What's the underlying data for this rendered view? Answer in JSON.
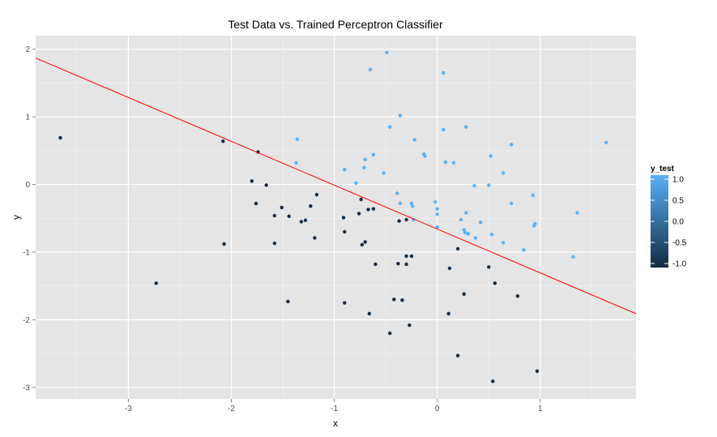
{
  "chart_data": {
    "type": "scatter",
    "title": "Test Data vs. Trained Perceptron Classifier",
    "xlabel": "x",
    "ylabel": "y",
    "xlim": [
      -3.9,
      1.93
    ],
    "ylim": [
      -3.17,
      2.2
    ],
    "x_ticks": [
      -3,
      -2,
      -1,
      0,
      1
    ],
    "y_ticks": [
      -3,
      -2,
      -1,
      0,
      1,
      2
    ],
    "grid": true,
    "colors": {
      "panel_bg": "#e5e5e5",
      "grid_major": "#ffffff",
      "grid_minor": "#f2f2f2",
      "low": "#132b43",
      "high": "#56b1f7",
      "line": "#ff0000"
    },
    "legend": {
      "title": "y_test",
      "placement": "right",
      "range": [
        -1.0,
        1.0
      ],
      "ticks": [
        "1.0",
        "0.5",
        "0.0",
        "-0.5",
        "-1.0"
      ]
    },
    "decision_line": {
      "points": [
        [
          -3.9,
          1.87
        ],
        [
          1.93,
          -1.91
        ]
      ]
    },
    "points": [
      {
        "x": -0.49,
        "y": 1.95,
        "c": 1
      },
      {
        "x": -0.65,
        "y": 1.7,
        "c": 1
      },
      {
        "x": 0.06,
        "y": 1.65,
        "c": 1
      },
      {
        "x": -0.36,
        "y": 1.02,
        "c": 1
      },
      {
        "x": -0.46,
        "y": 0.85,
        "c": 1
      },
      {
        "x": 0.28,
        "y": 0.85,
        "c": 1
      },
      {
        "x": 0.06,
        "y": 0.81,
        "c": 1
      },
      {
        "x": -0.22,
        "y": 0.66,
        "c": 1
      },
      {
        "x": -1.36,
        "y": 0.67,
        "c": 1
      },
      {
        "x": 1.64,
        "y": 0.62,
        "c": 1
      },
      {
        "x": 0.72,
        "y": 0.59,
        "c": 1
      },
      {
        "x": -0.62,
        "y": 0.44,
        "c": 1
      },
      {
        "x": -0.13,
        "y": 0.45,
        "c": 1
      },
      {
        "x": -0.12,
        "y": 0.42,
        "c": 1
      },
      {
        "x": 0.52,
        "y": 0.42,
        "c": 1
      },
      {
        "x": -0.7,
        "y": 0.37,
        "c": 1
      },
      {
        "x": 0.08,
        "y": 0.33,
        "c": 1
      },
      {
        "x": 0.16,
        "y": 0.32,
        "c": 1
      },
      {
        "x": -1.37,
        "y": 0.32,
        "c": 1
      },
      {
        "x": -0.71,
        "y": 0.25,
        "c": 1
      },
      {
        "x": -0.9,
        "y": 0.22,
        "c": 1
      },
      {
        "x": -0.52,
        "y": 0.17,
        "c": 1
      },
      {
        "x": 0.64,
        "y": 0.17,
        "c": 1
      },
      {
        "x": -0.79,
        "y": 0.02,
        "c": 1
      },
      {
        "x": 0.5,
        "y": -0.01,
        "c": 1
      },
      {
        "x": 0.36,
        "y": -0.02,
        "c": 1
      },
      {
        "x": -0.39,
        "y": -0.13,
        "c": 1
      },
      {
        "x": 0.93,
        "y": -0.16,
        "c": 1
      },
      {
        "x": -0.02,
        "y": -0.26,
        "c": 1
      },
      {
        "x": -0.36,
        "y": -0.28,
        "c": 1
      },
      {
        "x": -0.25,
        "y": -0.28,
        "c": 1
      },
      {
        "x": 0.72,
        "y": -0.28,
        "c": 1
      },
      {
        "x": -0.24,
        "y": -0.32,
        "c": 1
      },
      {
        "x": 0.0,
        "y": -0.36,
        "c": 1
      },
      {
        "x": 0.0,
        "y": -0.44,
        "c": 1
      },
      {
        "x": 1.36,
        "y": -0.42,
        "c": 1
      },
      {
        "x": 0.28,
        "y": -0.42,
        "c": 1
      },
      {
        "x": -0.23,
        "y": -0.52,
        "c": 1
      },
      {
        "x": 0.23,
        "y": -0.52,
        "c": 1
      },
      {
        "x": 0.42,
        "y": -0.56,
        "c": 1
      },
      {
        "x": 0.95,
        "y": -0.58,
        "c": 1
      },
      {
        "x": 0.94,
        "y": -0.61,
        "c": 1
      },
      {
        "x": 0.0,
        "y": -0.63,
        "c": 1
      },
      {
        "x": 0.26,
        "y": -0.67,
        "c": 1
      },
      {
        "x": 0.27,
        "y": -0.71,
        "c": 1
      },
      {
        "x": 0.3,
        "y": -0.73,
        "c": 1
      },
      {
        "x": 0.53,
        "y": -0.74,
        "c": 1
      },
      {
        "x": 0.37,
        "y": -0.79,
        "c": 1
      },
      {
        "x": 0.64,
        "y": -0.86,
        "c": 1
      },
      {
        "x": 0.84,
        "y": -0.97,
        "c": 1
      },
      {
        "x": 1.32,
        "y": -1.07,
        "c": 1
      },
      {
        "x": -3.66,
        "y": 0.69,
        "c": -1
      },
      {
        "x": -2.08,
        "y": 0.64,
        "c": -1
      },
      {
        "x": -1.74,
        "y": 0.48,
        "c": -1
      },
      {
        "x": -1.8,
        "y": 0.05,
        "c": -1
      },
      {
        "x": -1.66,
        "y": -0.01,
        "c": -1
      },
      {
        "x": -1.17,
        "y": -0.15,
        "c": -1
      },
      {
        "x": -0.74,
        "y": -0.22,
        "c": -1
      },
      {
        "x": -1.76,
        "y": -0.28,
        "c": -1
      },
      {
        "x": -1.51,
        "y": -0.34,
        "c": -1
      },
      {
        "x": -1.23,
        "y": -0.32,
        "c": -1
      },
      {
        "x": -0.67,
        "y": -0.37,
        "c": -1
      },
      {
        "x": -0.62,
        "y": -0.36,
        "c": -1
      },
      {
        "x": -0.76,
        "y": -0.43,
        "c": -1
      },
      {
        "x": -1.58,
        "y": -0.46,
        "c": -1
      },
      {
        "x": -1.44,
        "y": -0.47,
        "c": -1
      },
      {
        "x": -0.91,
        "y": -0.49,
        "c": -1
      },
      {
        "x": -1.32,
        "y": -0.55,
        "c": -1
      },
      {
        "x": -1.28,
        "y": -0.53,
        "c": -1
      },
      {
        "x": -0.37,
        "y": -0.54,
        "c": -1
      },
      {
        "x": -0.3,
        "y": -0.52,
        "c": -1
      },
      {
        "x": -0.9,
        "y": -0.7,
        "c": -1
      },
      {
        "x": -1.19,
        "y": -0.79,
        "c": -1
      },
      {
        "x": -0.7,
        "y": -0.85,
        "c": -1
      },
      {
        "x": -1.58,
        "y": -0.87,
        "c": -1
      },
      {
        "x": -2.07,
        "y": -0.88,
        "c": -1
      },
      {
        "x": -0.73,
        "y": -0.89,
        "c": -1
      },
      {
        "x": 0.2,
        "y": -0.95,
        "c": -1
      },
      {
        "x": -0.3,
        "y": -1.06,
        "c": -1
      },
      {
        "x": -0.25,
        "y": -1.06,
        "c": -1
      },
      {
        "x": -0.38,
        "y": -1.17,
        "c": -1
      },
      {
        "x": -0.3,
        "y": -1.18,
        "c": -1
      },
      {
        "x": -0.6,
        "y": -1.18,
        "c": -1
      },
      {
        "x": 0.5,
        "y": -1.22,
        "c": -1
      },
      {
        "x": 0.12,
        "y": -1.24,
        "c": -1
      },
      {
        "x": -2.73,
        "y": -1.46,
        "c": -1
      },
      {
        "x": 0.56,
        "y": -1.46,
        "c": -1
      },
      {
        "x": 0.26,
        "y": -1.62,
        "c": -1
      },
      {
        "x": 0.78,
        "y": -1.65,
        "c": -1
      },
      {
        "x": -0.42,
        "y": -1.7,
        "c": -1
      },
      {
        "x": -0.34,
        "y": -1.71,
        "c": -1
      },
      {
        "x": -1.45,
        "y": -1.73,
        "c": -1
      },
      {
        "x": -0.9,
        "y": -1.75,
        "c": -1
      },
      {
        "x": -0.66,
        "y": -1.91,
        "c": -1
      },
      {
        "x": 0.11,
        "y": -1.91,
        "c": -1
      },
      {
        "x": -0.27,
        "y": -2.08,
        "c": -1
      },
      {
        "x": -0.46,
        "y": -2.2,
        "c": -1
      },
      {
        "x": 0.2,
        "y": -2.53,
        "c": -1
      },
      {
        "x": 0.97,
        "y": -2.76,
        "c": -1
      },
      {
        "x": 0.54,
        "y": -2.91,
        "c": -1
      }
    ]
  }
}
